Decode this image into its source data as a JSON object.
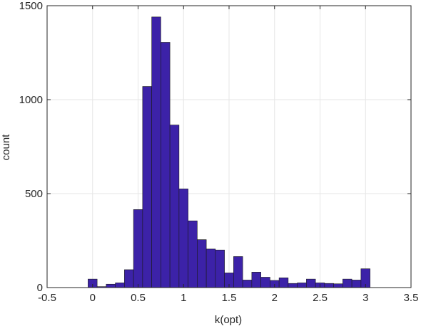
{
  "chart_data": {
    "type": "bar",
    "subtype": "histogram",
    "title": "",
    "xlabel": "k(opt)",
    "ylabel": "count",
    "xlim": [
      -0.5,
      3.5
    ],
    "ylim": [
      0,
      1500
    ],
    "xticks": [
      -0.5,
      0,
      0.5,
      1,
      1.5,
      2,
      2.5,
      3,
      3.5
    ],
    "xtick_labels": [
      "-0.5",
      "0",
      "0.5",
      "1",
      "1.5",
      "2",
      "2.5",
      "3",
      "3.5"
    ],
    "yticks": [
      0,
      500,
      1000,
      1500
    ],
    "ytick_labels": [
      "0",
      "500",
      "1000",
      "1500"
    ],
    "grid": true,
    "bar_color": "#3c22a8",
    "bin_width": 0.1,
    "bin_starts": [
      -0.05,
      0.05,
      0.15,
      0.25,
      0.35,
      0.45,
      0.55,
      0.65,
      0.75,
      0.85,
      0.95,
      1.05,
      1.15,
      1.25,
      1.35,
      1.45,
      1.55,
      1.65,
      1.75,
      1.85,
      1.95,
      2.05,
      2.15,
      2.25,
      2.35,
      2.45,
      2.55,
      2.65,
      2.75,
      2.85,
      2.95
    ],
    "values": [
      45,
      5,
      18,
      25,
      95,
      415,
      1070,
      1440,
      1305,
      865,
      525,
      355,
      255,
      205,
      200,
      78,
      165,
      40,
      82,
      55,
      38,
      52,
      22,
      25,
      45,
      25,
      22,
      20,
      45,
      40,
      100
    ]
  }
}
